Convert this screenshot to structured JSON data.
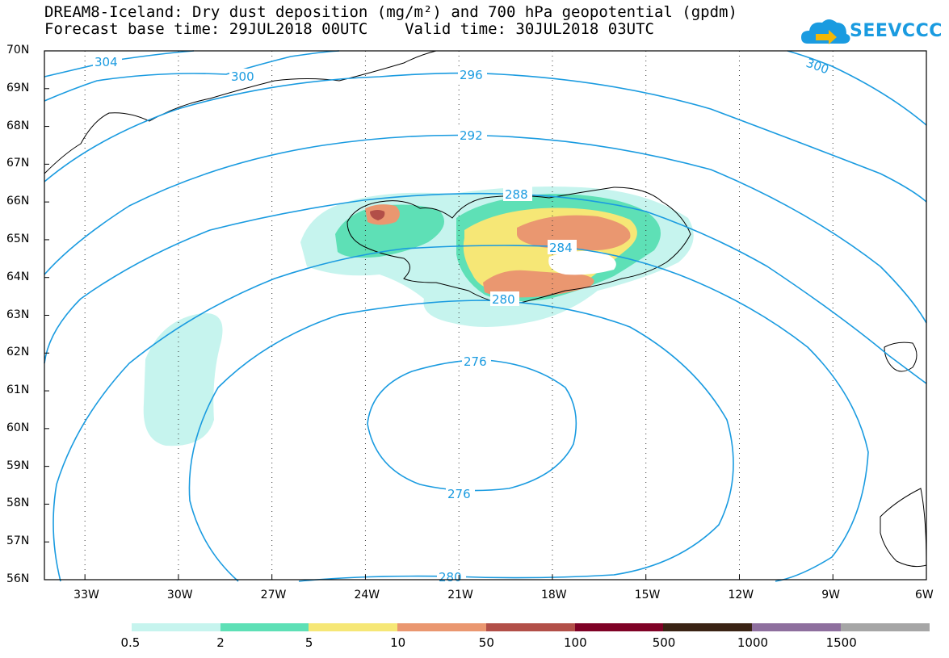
{
  "title": {
    "line1": "DREAM8-Iceland: Dry dust deposition (mg/m²) and 700 hPa geopotential (gpdm)",
    "line2": "Forecast base time: 29JUL2018 00UTC    Valid time: 30JUL2018 03UTC"
  },
  "logo": {
    "text": "SEEVCCC",
    "icon": "cloud-arrow-icon",
    "color": "#1a9be0"
  },
  "axes": {
    "lat_labels": [
      "70N",
      "69N",
      "68N",
      "67N",
      "66N",
      "65N",
      "64N",
      "63N",
      "62N",
      "61N",
      "60N",
      "59N",
      "58N",
      "57N",
      "56N"
    ],
    "lon_labels": [
      "33W",
      "30W",
      "27W",
      "24W",
      "21W",
      "18W",
      "15W",
      "12W",
      "9W",
      "6W"
    ],
    "lat_range": [
      56,
      70
    ],
    "lon_range": [
      -34.3,
      -6
    ]
  },
  "contours": {
    "color": "#1a9be0",
    "labels": [
      "304",
      "300",
      "296",
      "292",
      "288",
      "284",
      "280",
      "276",
      "276",
      "280",
      "300"
    ]
  },
  "legend": {
    "colors": [
      "#c6f4ee",
      "#5ee0b6",
      "#f6e776",
      "#ea9770",
      "#b24f48",
      "#7f0226",
      "#3a2314",
      "#8e6f9e",
      "#a6a6a6"
    ],
    "labels": [
      "0.5",
      "2",
      "5",
      "10",
      "50",
      "100",
      "500",
      "1000",
      "1500"
    ]
  }
}
